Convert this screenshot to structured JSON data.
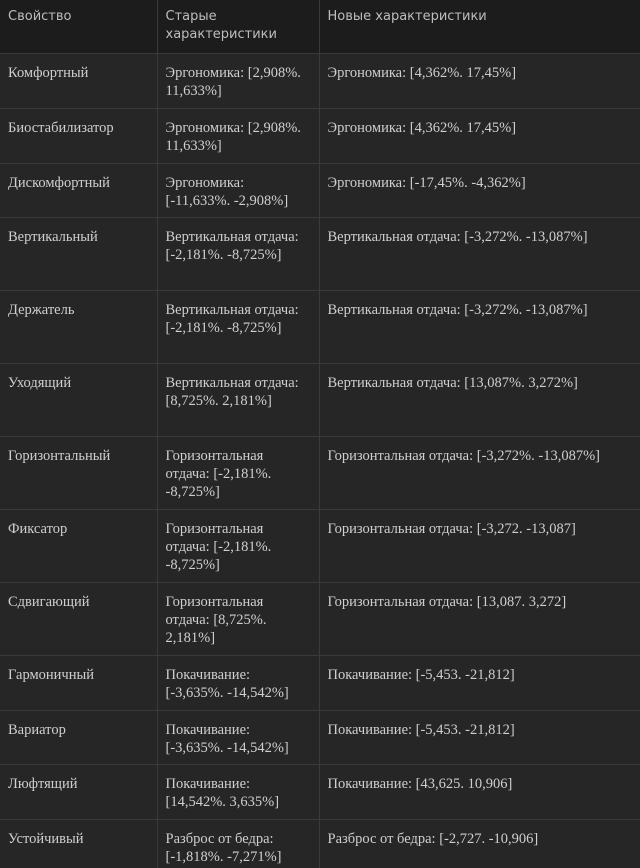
{
  "table": {
    "header": [
      "Свойство",
      "Старые характеристики",
      "Новые характеристики"
    ],
    "rows": [
      [
        "Комфортный",
        "Эргономика: [2,908%. 11,633%]",
        "Эргономика: [4,362%. 17,45%]"
      ],
      [
        "Биостабилизатор",
        "Эргономика: [2,908%. 11,633%]",
        "Эргономика: [4,362%. 17,45%]"
      ],
      [
        "Дискомфортный",
        "Эргономика: [-11,633%. -2,908%]",
        "Эргономика: [-17,45%. -4,362%]"
      ],
      [
        "Вертикальный",
        "Вертикальная отдача: [-2,181%. -8,725%]",
        "Вертикальная отдача: [-3,272%. -13,087%]"
      ],
      [
        "Держатель",
        "Вертикальная отдача: [-2,181%. -8,725%]",
        "Вертикальная отдача: [-3,272%. -13,087%]"
      ],
      [
        "Уходящий",
        "Вертикальная отдача: [8,725%. 2,181%]",
        "Вертикальная отдача: [13,087%. 3,272%]"
      ],
      [
        "Горизонтальный",
        "Горизонтальная отдача: [-2,181%. -8,725%]",
        "Горизонтальная отдача: [-3,272%. -13,087%]"
      ],
      [
        "Фиксатор",
        "Горизонтальная отдача: [-2,181%. -8,725%]",
        "Горизонтальная отдача: [-3,272. -13,087]"
      ],
      [
        "Сдвигающий",
        "Горизонтальная отдача: [8,725%. 2,181%]",
        "Горизонтальная отдача: [13,087. 3,272]"
      ],
      [
        "Гармоничный",
        "Покачивание: [-3,635%. -14,542%]",
        "Покачивание: [-5,453. -21,812]"
      ],
      [
        "Вариатор",
        "Покачивание: [-3,635%. -14,542%]",
        "Покачивание: [-5,453. -21,812]"
      ],
      [
        "Люфтящий",
        "Покачивание: [14,542%. 3,635%]",
        "Покачивание: [43,625. 10,906]"
      ],
      [
        "Устойчивый",
        "Разброс от бедра: [-1,818%. -7,271%]",
        "Разброс от бедра: [-2,727. -10,906]"
      ]
    ]
  }
}
